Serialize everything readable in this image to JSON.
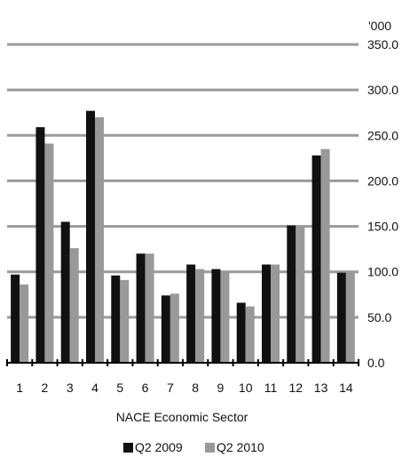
{
  "chart_data": {
    "type": "bar",
    "title": "",
    "unit_label": "'000",
    "xlabel": "NACE Economic Sector",
    "ylabel": "",
    "ylim": [
      0,
      350
    ],
    "y_ticks": [
      "0.0",
      "50.0",
      "100.0",
      "150.0",
      "200.0",
      "250.0",
      "300.0",
      "350.0"
    ],
    "categories": [
      "1",
      "2",
      "3",
      "4",
      "5",
      "6",
      "7",
      "8",
      "9",
      "10",
      "11",
      "12",
      "13",
      "14"
    ],
    "series": [
      {
        "name": "Q2 2009",
        "color": "#111111",
        "values": [
          97,
          259,
          155,
          277,
          96,
          120,
          74,
          108,
          103,
          66,
          108,
          151,
          228,
          99
        ]
      },
      {
        "name": "Q2 2010",
        "color": "#999999",
        "values": [
          86,
          241,
          126,
          270,
          91,
          120,
          76,
          103,
          101,
          62,
          108,
          151,
          235,
          101
        ]
      }
    ],
    "grid": true,
    "legend_position": "bottom"
  }
}
